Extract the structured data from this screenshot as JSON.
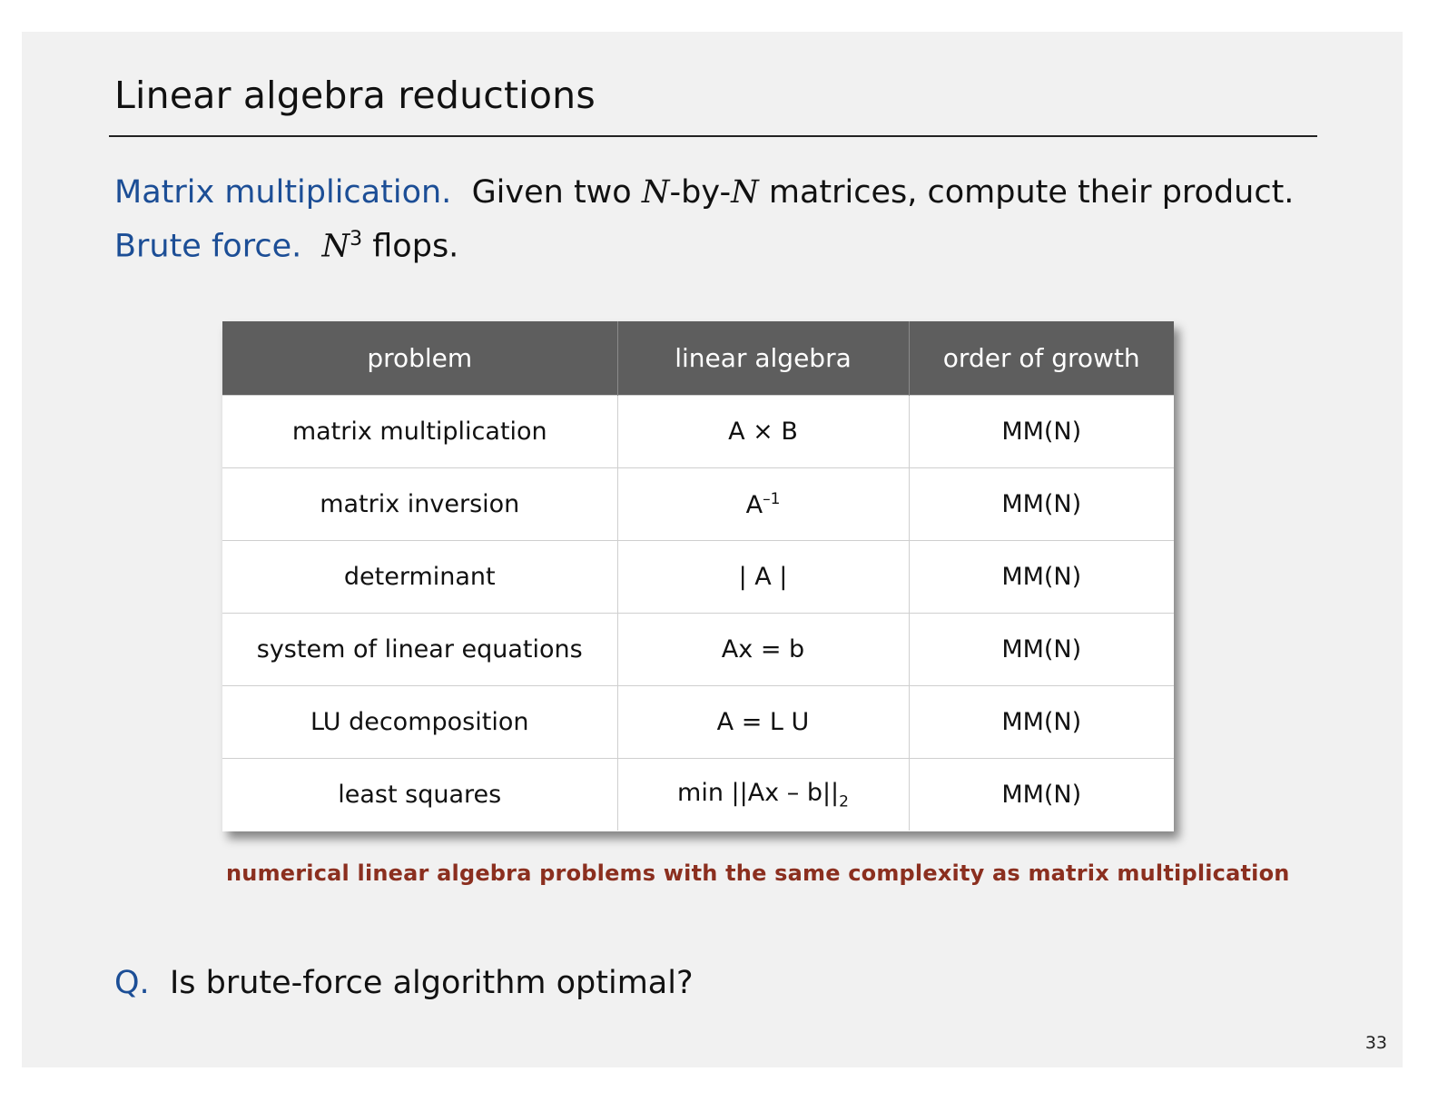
{
  "title": "Linear algebra reductions",
  "line1": {
    "label": "Matrix multiplication.",
    "text_a": "Given two",
    "var1": "N",
    "sep": "-by-",
    "var2": "N",
    "text_b": "matrices, compute their product."
  },
  "line2": {
    "label": "Brute force.",
    "var": "N",
    "exp": "3",
    "text": "flops."
  },
  "table": {
    "headers": [
      "problem",
      "linear algebra",
      "order of growth"
    ],
    "rows": [
      {
        "problem": "matrix multiplication",
        "algebra": "A × B",
        "growth": "MM(N)"
      },
      {
        "problem": "matrix inversion",
        "algebra": "A",
        "algebra_sup": "–1",
        "growth": "MM(N)"
      },
      {
        "problem": "determinant",
        "algebra": "| A |",
        "growth": "MM(N)"
      },
      {
        "problem": "system of linear equations",
        "algebra": "Ax = b",
        "growth": "MM(N)"
      },
      {
        "problem": "LU decomposition",
        "algebra": "A = L U",
        "growth": "MM(N)"
      },
      {
        "problem": "least squares",
        "algebra": "min ||Ax – b||",
        "algebra_sub": "2",
        "growth": "MM(N)"
      }
    ]
  },
  "caption": "numerical linear algebra problems with the same complexity as matrix multiplication",
  "question": {
    "label": "Q.",
    "text": "Is brute-force algorithm optimal?"
  },
  "page_number": "33"
}
